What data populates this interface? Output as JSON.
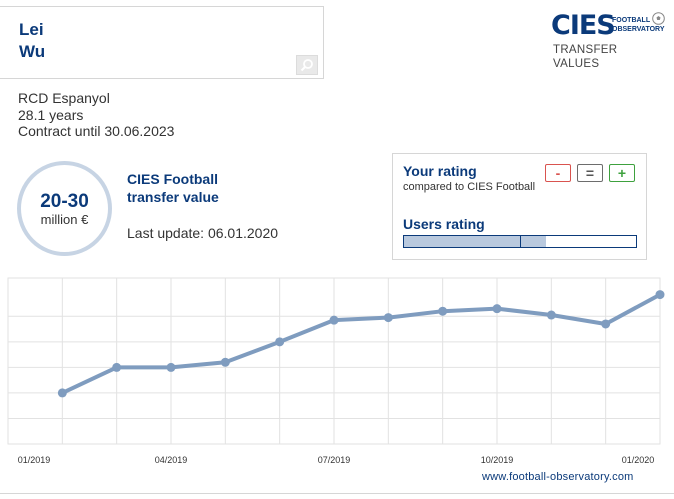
{
  "player": {
    "first_name": "Lei",
    "last_name": "Wu",
    "club": "RCD Espanyol",
    "age": "28.1 years",
    "contract": "Contract until 30.06.2023"
  },
  "logo": {
    "brand": "CIES",
    "sub_line1": "FOOTBALL",
    "sub_line2": "OBSERVATORY",
    "tagline_line1": "TRANSFER",
    "tagline_line2": "VALUES"
  },
  "valuation": {
    "range": "20-30",
    "unit": "million €",
    "label_line1": "CIES Football",
    "label_line2": "transfer value",
    "last_update": "Last update: 06.01.2020"
  },
  "rating": {
    "title": "Your rating",
    "subtitle": "compared to CIES Football",
    "minus_label": "-",
    "equal_label": "=",
    "plus_label": "+",
    "users_title": "Users rating",
    "users_fill_fraction": 0.61,
    "users_marker_fraction": 0.5
  },
  "colors": {
    "brand_blue": "#0b3a7a",
    "line_color": "#7f9cbf",
    "grid_color": "#e2e2e2",
    "minus_red": "#d9534f",
    "plus_green": "#3ea13e"
  },
  "chart_data": {
    "type": "line",
    "title": "",
    "xlabel": "",
    "ylabel": "",
    "x_ticks": [
      "01/2019",
      "04/2019",
      "07/2019",
      "10/2019",
      "01/2020"
    ],
    "x": [
      1,
      2,
      3,
      4,
      5,
      6,
      7,
      8,
      9,
      10,
      11,
      12
    ],
    "xlim": [
      0,
      12
    ],
    "series": [
      {
        "values": [
          1.0,
          2.0,
          2.0,
          2.2,
          3.0,
          3.85,
          3.95,
          4.2,
          4.3,
          4.05,
          3.7,
          4.85
        ]
      }
    ],
    "ylim": [
      -1,
      5.5
    ],
    "grid": true,
    "legend": "none"
  },
  "footer": {
    "url": "www.football-observatory.com"
  }
}
